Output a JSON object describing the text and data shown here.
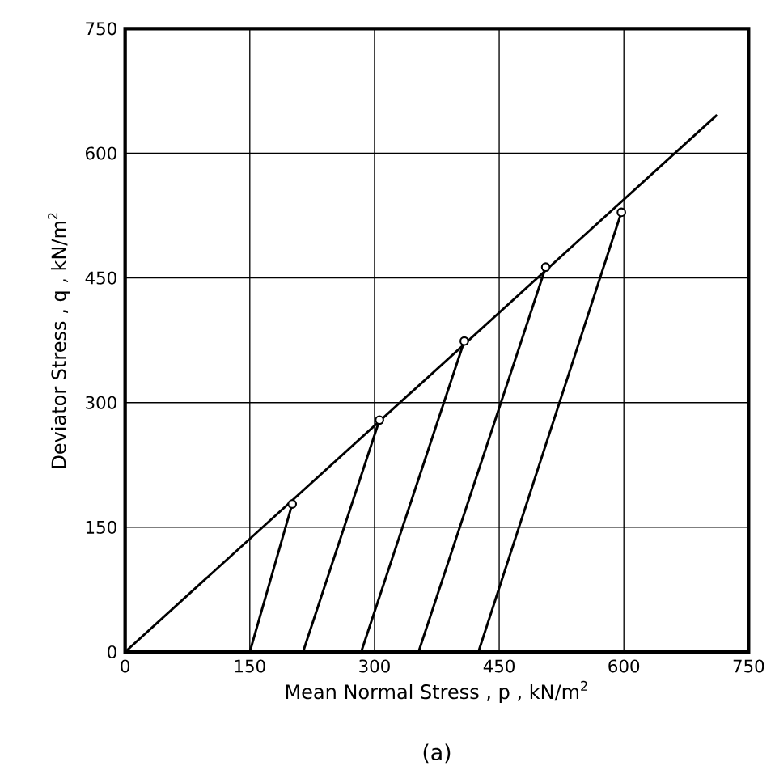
{
  "chart_data": {
    "type": "line",
    "xlabel": "Mean Normal Stress , p , kN/m$^{2}$",
    "ylabel": "Deviator Stress , q , kN/m$^{2}$",
    "annotations": [
      "(a)"
    ],
    "xlim": [
      0,
      750
    ],
    "ylim": [
      0,
      750
    ],
    "xticks": [
      0,
      150,
      300,
      450,
      600,
      750
    ],
    "yticks": [
      0,
      150,
      300,
      450,
      600,
      750
    ],
    "grid": true,
    "series": [
      {
        "color": "#000000",
        "x": [
          0,
          712
        ],
        "values": [
          0,
          646
        ]
      },
      {
        "color": "#000000",
        "x": [
          150,
          201
        ],
        "values": [
          0,
          178
        ]
      },
      {
        "color": "#000000",
        "x": [
          214,
          306
        ],
        "values": [
          0,
          279
        ]
      },
      {
        "color": "#000000",
        "x": [
          284,
          408
        ],
        "values": [
          0,
          374
        ]
      },
      {
        "color": "#000000",
        "x": [
          353,
          506
        ],
        "values": [
          0,
          463
        ]
      },
      {
        "color": "#000000",
        "x": [
          425,
          597
        ],
        "values": [
          0,
          529
        ]
      },
      {
        "type": "scatter",
        "color": "#000000",
        "marker": "circle",
        "x": [
          201,
          306,
          408,
          506,
          597
        ],
        "values": [
          178,
          279,
          374,
          463,
          529
        ]
      }
    ]
  }
}
